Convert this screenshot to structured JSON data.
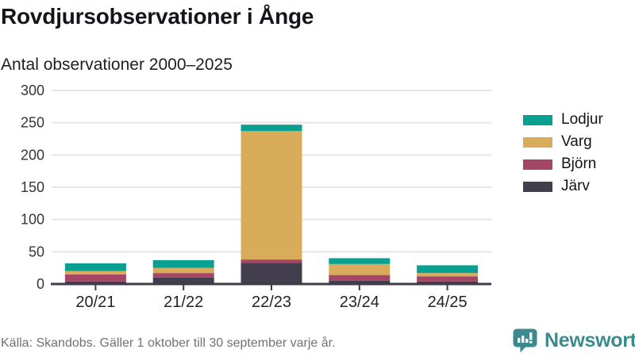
{
  "header": {
    "title": "Rovdjursobservationer i Ånge",
    "subtitle": "Antal observationer 2000–2025"
  },
  "chart_data": {
    "type": "bar",
    "stacked": true,
    "title": "Rovdjursobservationer i Ånge",
    "subtitle": "Antal observationer 2000–2025",
    "categories": [
      "20/21",
      "21/22",
      "22/23",
      "23/24",
      "24/25"
    ],
    "series": [
      {
        "name": "Järv",
        "color": "#423e4d",
        "values": [
          4,
          10,
          33,
          5,
          4
        ]
      },
      {
        "name": "Björn",
        "color": "#a64666",
        "values": [
          11,
          7,
          5,
          9,
          8
        ]
      },
      {
        "name": "Varg",
        "color": "#d9ac5c",
        "values": [
          5,
          8,
          199,
          17,
          5
        ]
      },
      {
        "name": "Lodjur",
        "color": "#0aa091",
        "values": [
          12,
          12,
          10,
          9,
          12
        ]
      }
    ],
    "xlabel": "",
    "ylabel": "",
    "ylim": [
      0,
      300
    ],
    "yticks": [
      0,
      50,
      100,
      150,
      200,
      250,
      300
    ],
    "grid": "horizontal",
    "legend_position": "right",
    "axis_color": "#3f3b46",
    "gridline_color": "#e5e5e5",
    "tick_label_color": "#35363a",
    "x_label_color": "#222428"
  },
  "legend": {
    "entries": [
      {
        "label": "Lodjur",
        "color": "#0aa091"
      },
      {
        "label": "Varg",
        "color": "#d9ac5c"
      },
      {
        "label": "Björn",
        "color": "#a64666"
      },
      {
        "label": "Järv",
        "color": "#423e4d"
      }
    ]
  },
  "footer": {
    "source": "Källa: Skandobs. Gäller 1 oktober till 30 september varje år.",
    "brand": "Newsworthy",
    "brand_color": "#3b8b8e"
  }
}
